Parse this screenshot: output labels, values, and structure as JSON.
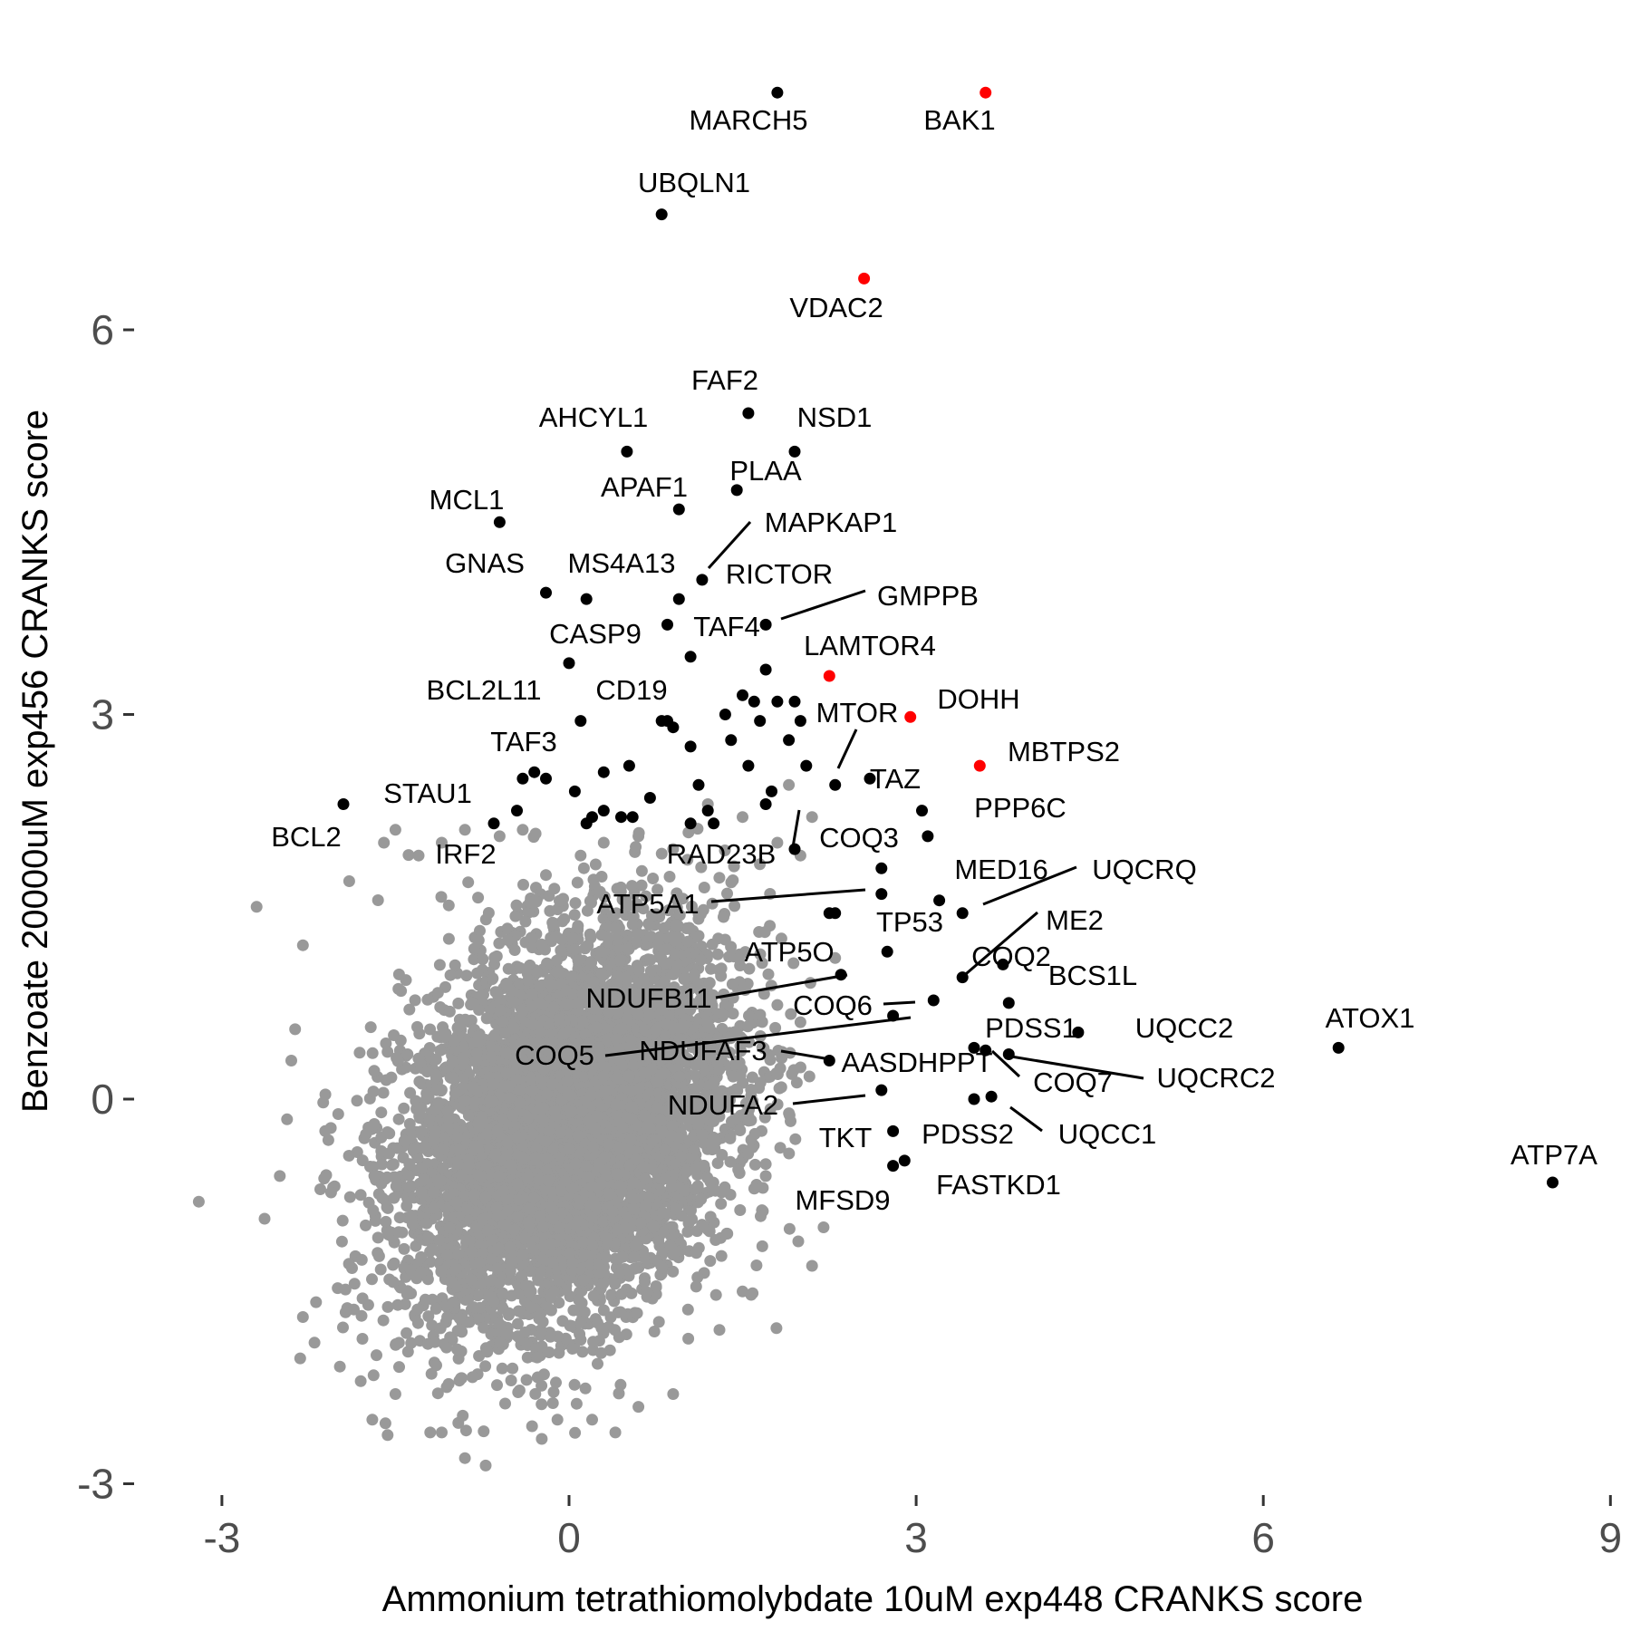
{
  "chart_data": {
    "type": "scatter",
    "xlabel": "Ammonium tetrathiomolybdate 10uM exp448 CRANKS score",
    "ylabel": "Benzoate 20000uM exp456 CRANKS score",
    "xlim": [
      -3.6,
      9.0
    ],
    "ylim": [
      -3.15,
      8.2
    ],
    "x_ticks": [
      -3,
      0,
      3,
      6,
      9
    ],
    "y_ticks": [
      -3,
      0,
      3,
      6
    ],
    "grid": false,
    "legend": "none",
    "colors": {
      "background": "#999999",
      "highlight": "#000000",
      "special": "#ff0000"
    },
    "background_points": {
      "n": 6500,
      "center": [
        0.0,
        -0.2
      ],
      "sd": [
        0.7,
        0.75
      ],
      "correlation": 0.3,
      "outliers": [
        [
          -3.2,
          -0.8
        ],
        [
          -2.7,
          1.5
        ],
        [
          -2.5,
          -0.6
        ],
        [
          -2.4,
          0.3
        ],
        [
          -2.3,
          -1.7
        ],
        [
          -2.2,
          -1.9
        ],
        [
          -2.3,
          1.2
        ],
        [
          -1.9,
          1.7
        ],
        [
          -1.8,
          -2.2
        ],
        [
          -1.7,
          -2.5
        ],
        [
          -1.5,
          -2.3
        ],
        [
          -1.6,
          2.0
        ],
        [
          -1.5,
          2.1
        ],
        [
          -1.2,
          -2.6
        ],
        [
          -1.1,
          -2.6
        ],
        [
          -1.3,
          1.9
        ],
        [
          -1.1,
          2.0
        ],
        [
          -0.9,
          2.1
        ],
        [
          -0.6,
          2.05
        ],
        [
          -0.4,
          2.1
        ],
        [
          0.1,
          1.9
        ],
        [
          0.3,
          2.0
        ],
        [
          0.6,
          2.05
        ],
        [
          0.9,
          1.95
        ],
        [
          1.2,
          2.3
        ],
        [
          1.5,
          2.2
        ],
        [
          1.8,
          2.0
        ],
        [
          1.9,
          2.45
        ],
        [
          2.0,
          1.9
        ],
        [
          2.1,
          2.2
        ],
        [
          0.2,
          -2.5
        ],
        [
          0.6,
          -2.4
        ],
        [
          0.9,
          -2.3
        ],
        [
          1.3,
          -1.8
        ],
        [
          1.5,
          -1.5
        ],
        [
          2.1,
          -1.3
        ],
        [
          2.2,
          -1.0
        ],
        [
          1.7,
          -0.6
        ],
        [
          2.0,
          0.6
        ],
        [
          2.3,
          1.1
        ],
        [
          -0.9,
          -2.8
        ],
        [
          -0.1,
          -2.5
        ],
        [
          0.4,
          -2.6
        ],
        [
          1.1,
          -1.2
        ],
        [
          1.8,
          0.2
        ]
      ]
    },
    "labeled_points": [
      {
        "name": "MARCH5",
        "x": 1.8,
        "y": 7.85,
        "color": "black"
      },
      {
        "name": "BAK1",
        "x": 3.6,
        "y": 7.85,
        "color": "red"
      },
      {
        "name": "UBQLN1",
        "x": 0.8,
        "y": 6.9,
        "color": "black"
      },
      {
        "name": "VDAC2",
        "x": 2.55,
        "y": 6.4,
        "color": "red"
      },
      {
        "name": "FAF2",
        "x": 1.55,
        "y": 5.35,
        "color": "black"
      },
      {
        "name": "NSD1",
        "x": 1.95,
        "y": 5.05,
        "color": "black"
      },
      {
        "name": "AHCYL1",
        "x": 0.5,
        "y": 5.05,
        "color": "black"
      },
      {
        "name": "PLAA",
        "x": 1.45,
        "y": 4.75,
        "color": "black"
      },
      {
        "name": "APAF1",
        "x": 0.95,
        "y": 4.6,
        "color": "black"
      },
      {
        "name": "MCL1",
        "x": -0.6,
        "y": 4.5,
        "color": "black"
      },
      {
        "name": "MAPKAP1",
        "x": 1.15,
        "y": 4.05,
        "color": "black"
      },
      {
        "name": "RICTOR",
        "x": 0.95,
        "y": 3.9,
        "color": "black"
      },
      {
        "name": "GNAS",
        "x": -0.2,
        "y": 3.95,
        "color": "black"
      },
      {
        "name": "MS4A13",
        "x": 0.15,
        "y": 3.9,
        "color": "black"
      },
      {
        "name": "GMPPB",
        "x": 1.7,
        "y": 3.7,
        "color": "black"
      },
      {
        "name": "TAF4",
        "x": 0.85,
        "y": 3.7,
        "color": "black"
      },
      {
        "name": "CASP9",
        "x": 0.0,
        "y": 3.4,
        "color": "black"
      },
      {
        "name": "LAMTOR4",
        "x": 2.25,
        "y": 3.3,
        "color": "red"
      },
      {
        "name": "BCL2L11",
        "x": 0.1,
        "y": 2.95,
        "color": "black"
      },
      {
        "name": "CD19",
        "x": 0.85,
        "y": 2.95,
        "color": "black"
      },
      {
        "name": "DOHH",
        "x": 2.95,
        "y": 2.98,
        "color": "red"
      },
      {
        "name": "MTOR",
        "x": 2.3,
        "y": 2.45,
        "color": "black"
      },
      {
        "name": "MBTPS2",
        "x": 3.55,
        "y": 2.6,
        "color": "red"
      },
      {
        "name": "TAF3",
        "x": -0.3,
        "y": 2.55,
        "color": "black"
      },
      {
        "name": "TAZ",
        "x": 2.6,
        "y": 2.5,
        "color": "black"
      },
      {
        "name": "STAU1",
        "x": -0.45,
        "y": 2.25,
        "color": "black"
      },
      {
        "name": "BCL2",
        "x": -1.95,
        "y": 2.3,
        "color": "black"
      },
      {
        "name": "PPP6C",
        "x": 3.05,
        "y": 2.25,
        "color": "black"
      },
      {
        "name": "IRF2",
        "x": -0.65,
        "y": 2.15,
        "color": "black"
      },
      {
        "name": "COQ3",
        "x": 3.1,
        "y": 2.05,
        "color": "black"
      },
      {
        "name": "RAD23B",
        "x": 1.95,
        "y": 1.95,
        "color": "black"
      },
      {
        "name": "MED16",
        "x": 2.7,
        "y": 1.8,
        "color": "black"
      },
      {
        "name": "UQCRQ",
        "x": 3.4,
        "y": 1.45,
        "color": "black"
      },
      {
        "name": "ATP5A1",
        "x": 2.7,
        "y": 1.6,
        "color": "black"
      },
      {
        "name": "TP53",
        "x": 3.2,
        "y": 1.55,
        "color": "black"
      },
      {
        "name": "ME2",
        "x": 3.4,
        "y": 0.95,
        "color": "black"
      },
      {
        "name": "ATP5O",
        "x": 2.25,
        "y": 1.45,
        "color": "black"
      },
      {
        "name": "COQ2",
        "x": 2.75,
        "y": 1.15,
        "color": "black"
      },
      {
        "name": "BCS1L",
        "x": 3.75,
        "y": 1.05,
        "color": "black"
      },
      {
        "name": "NDUFB11",
        "x": 2.35,
        "y": 0.97,
        "color": "black"
      },
      {
        "name": "COQ6",
        "x": 3.15,
        "y": 0.77,
        "color": "black"
      },
      {
        "name": "ATOX1",
        "x": 6.65,
        "y": 0.4,
        "color": "black"
      },
      {
        "name": "PDSS1",
        "x": 3.8,
        "y": 0.75,
        "color": "black"
      },
      {
        "name": "UQCC2",
        "x": 4.4,
        "y": 0.52,
        "color": "black"
      },
      {
        "name": "COQ5",
        "x": 2.8,
        "y": 0.65,
        "color": "black"
      },
      {
        "name": "NDUFAF3",
        "x": 2.25,
        "y": 0.3,
        "color": "black"
      },
      {
        "name": "AASDHPPT",
        "x": 3.5,
        "y": 0.4,
        "color": "black"
      },
      {
        "name": "UQCRC2",
        "x": 3.8,
        "y": 0.35,
        "color": "black"
      },
      {
        "name": "COQ7",
        "x": 3.6,
        "y": 0.38,
        "color": "black"
      },
      {
        "name": "NDUFA2",
        "x": 2.7,
        "y": 0.07,
        "color": "black"
      },
      {
        "name": "UQCC1",
        "x": 3.65,
        "y": 0.02,
        "color": "black"
      },
      {
        "name": "PDSS2",
        "x": 3.5,
        "y": 0.0,
        "color": "black"
      },
      {
        "name": "TKT",
        "x": 2.8,
        "y": -0.25,
        "color": "black"
      },
      {
        "name": "ATP7A",
        "x": 8.5,
        "y": -0.65,
        "color": "black"
      },
      {
        "name": "FASTKD1",
        "x": 2.9,
        "y": -0.48,
        "color": "black"
      },
      {
        "name": "MFSD9",
        "x": 2.8,
        "y": -0.52,
        "color": "black"
      }
    ],
    "extra_points": [
      [
        -0.4,
        2.5
      ],
      [
        -0.2,
        2.5
      ],
      [
        0.05,
        2.4
      ],
      [
        0.3,
        2.55
      ],
      [
        0.52,
        2.6
      ],
      [
        0.7,
        2.35
      ],
      [
        0.15,
        2.15
      ],
      [
        0.3,
        2.25
      ],
      [
        0.45,
        2.2
      ],
      [
        0.55,
        2.2
      ],
      [
        1.05,
        2.15
      ],
      [
        1.2,
        2.25
      ],
      [
        1.25,
        2.15
      ],
      [
        1.12,
        2.45
      ],
      [
        1.7,
        2.3
      ],
      [
        1.75,
        2.4
      ],
      [
        1.55,
        2.6
      ],
      [
        1.05,
        2.75
      ],
      [
        1.4,
        2.8
      ],
      [
        1.9,
        2.8
      ],
      [
        2.05,
        2.6
      ],
      [
        1.6,
        3.1
      ],
      [
        1.8,
        3.1
      ],
      [
        1.95,
        3.1
      ],
      [
        1.65,
        2.95
      ],
      [
        1.7,
        3.35
      ],
      [
        1.5,
        3.15
      ],
      [
        1.35,
        3.0
      ],
      [
        2.0,
        2.95
      ],
      [
        1.05,
        3.45
      ],
      [
        0.8,
        2.95
      ],
      [
        0.9,
        2.9
      ],
      [
        0.2,
        2.2
      ],
      [
        2.3,
        1.45
      ]
    ]
  }
}
